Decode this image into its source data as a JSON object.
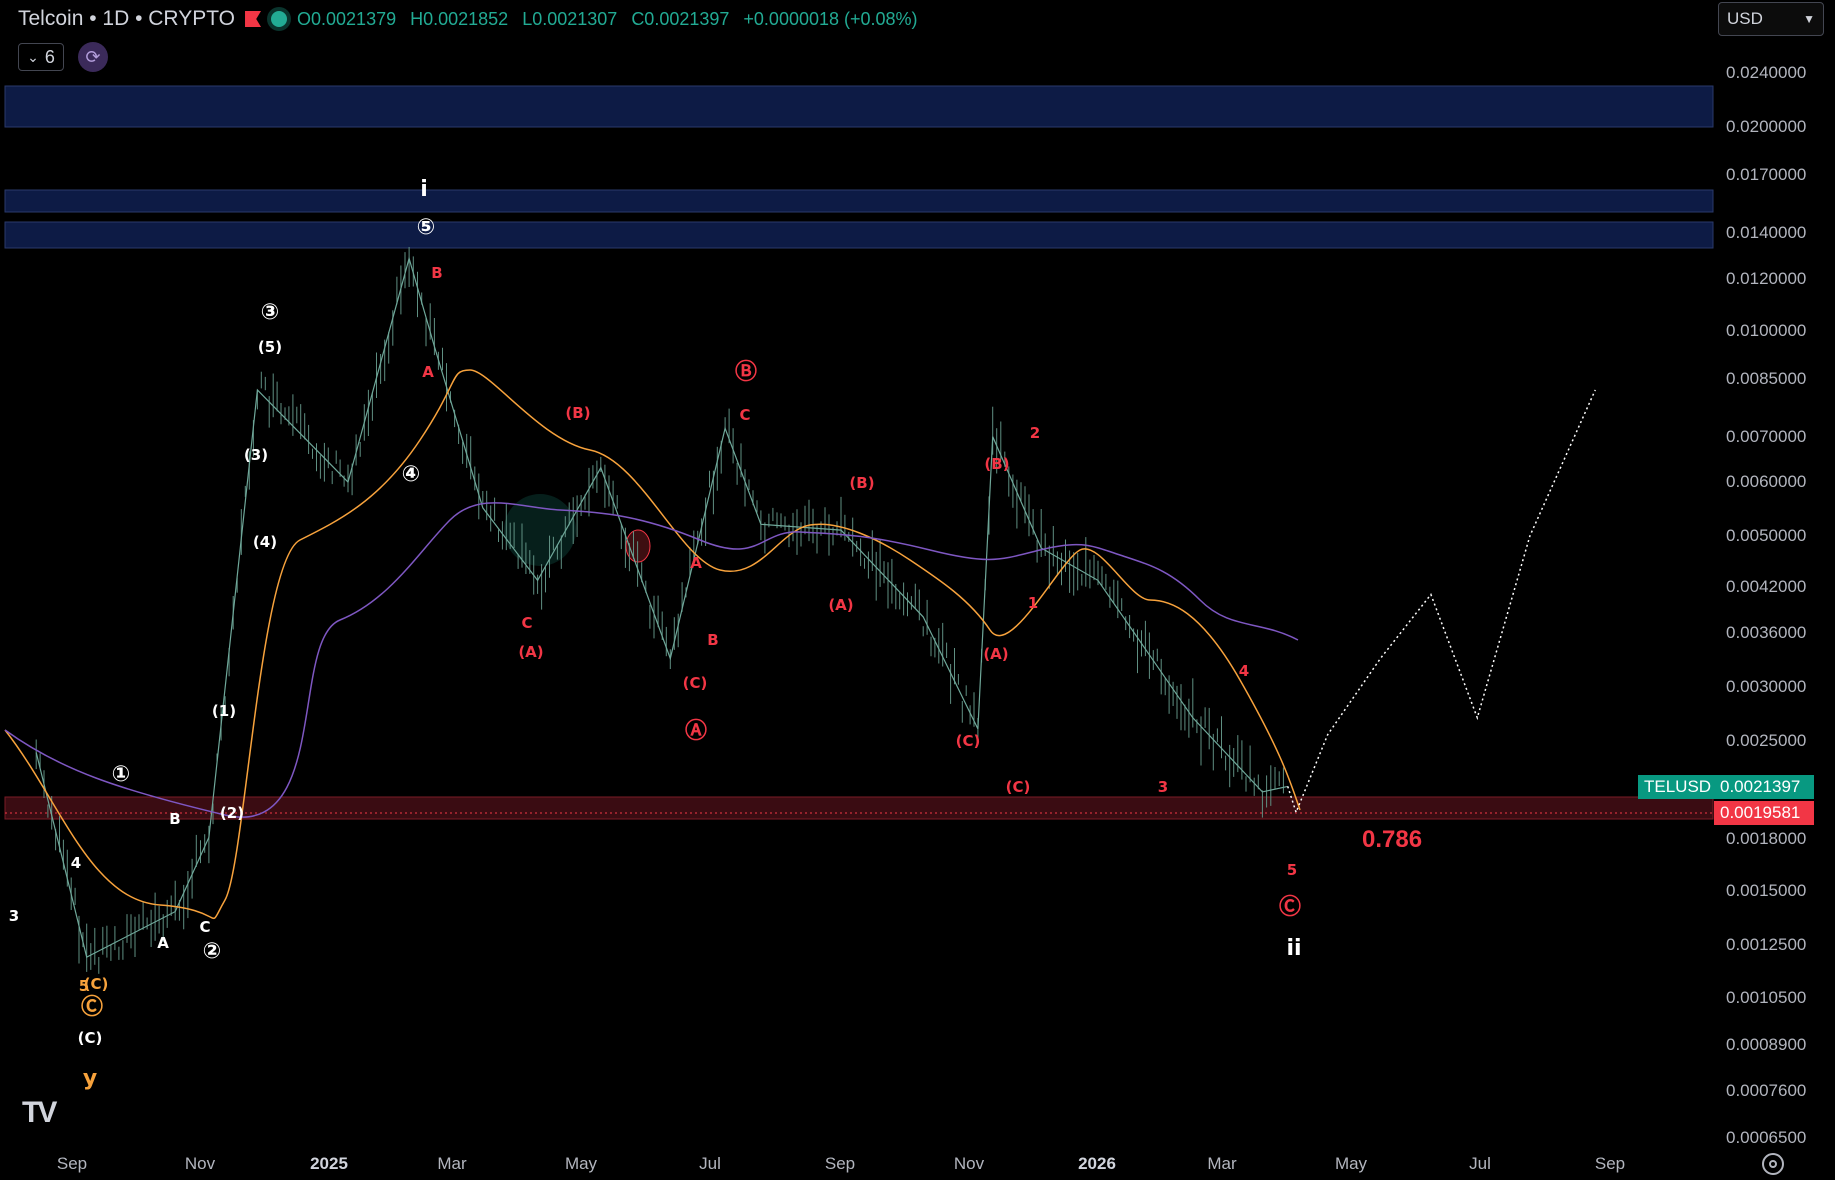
{
  "header": {
    "title": "Telcoin • 1D • CRYPTO",
    "open": "O0.0021379",
    "high": "H0.0021852",
    "low": "L0.0021307",
    "close": "C0.0021397",
    "change": "+0.0000018 (+0.08%)",
    "indicators_count": "6",
    "currency": "USD"
  },
  "price_axis": [
    "0.0240000",
    "0.0200000",
    "0.0170000",
    "0.0140000",
    "0.0120000",
    "0.0100000",
    "0.0085000",
    "0.0070000",
    "0.0060000",
    "0.0050000",
    "0.0042000",
    "0.0036000",
    "0.0030000",
    "0.0025000",
    "0.0018000",
    "0.0015000",
    "0.0012500",
    "0.0010500",
    "0.0008900",
    "0.0007600",
    "0.0006500"
  ],
  "time_axis": [
    "Sep",
    "Nov",
    "2025",
    "Mar",
    "May",
    "Jul",
    "Sep",
    "Nov",
    "2026",
    "Mar",
    "May",
    "Jul",
    "Sep"
  ],
  "tags": {
    "symbol": "TELUSD",
    "last_price": "0.0021397",
    "level_price": "0.0019581",
    "symbol_color": "#089981",
    "level_color": "#f23645"
  },
  "fib_label": "0.786",
  "logo": "TV",
  "icons": {
    "settings": "gear-icon",
    "sync": "sync-icon",
    "chevron": "chevron-down-icon"
  },
  "chart_data": {
    "type": "line",
    "symbol": "TELUSD",
    "timeframe": "1D",
    "log_scale": true,
    "x": [
      "2024-08-15",
      "2024-09-08",
      "2024-10-20",
      "2024-11-05",
      "2024-11-28",
      "2025-01-10",
      "2025-02-08",
      "2025-02-20",
      "2025-03-15",
      "2025-04-10",
      "2025-05-10",
      "2025-06-12",
      "2025-07-08",
      "2025-07-25",
      "2025-09-01",
      "2025-10-10",
      "2025-11-05",
      "2025-11-12",
      "2025-12-05",
      "2026-01-01",
      "2026-02-15",
      "2026-03-20",
      "2026-04-01"
    ],
    "series": [
      {
        "values": [
          0.0024,
          0.0012,
          0.0014,
          0.0018,
          0.0082,
          0.006,
          0.0128,
          0.0095,
          0.0055,
          0.0043,
          0.0063,
          0.0033,
          0.0072,
          0.0052,
          0.0051,
          0.0038,
          0.0026,
          0.007,
          0.0048,
          0.0043,
          0.0027,
          0.0021,
          0.0021397
        ]
      }
    ],
    "projection": {
      "x": [
        "2026-04-01",
        "2026-04-05",
        "2026-04-20",
        "2026-05-15",
        "2026-06-08",
        "2026-06-30",
        "2026-07-25",
        "2026-08-25"
      ],
      "y": [
        0.0021397,
        0.00196,
        0.00255,
        0.0033,
        0.0041,
        0.0027,
        0.005,
        0.0082
      ]
    },
    "wave_labels": [
      {
        "text": "i",
        "color": "white"
      },
      {
        "text": "⑤",
        "color": "white"
      },
      {
        "text": "③",
        "color": "white"
      },
      {
        "text": "(5)",
        "color": "white"
      },
      {
        "text": "(3)",
        "color": "white"
      },
      {
        "text": "(4)",
        "color": "white"
      },
      {
        "text": "④",
        "color": "white"
      },
      {
        "text": "①",
        "color": "white"
      },
      {
        "text": "(1)",
        "color": "white"
      },
      {
        "text": "(2)",
        "color": "white"
      },
      {
        "text": "②",
        "color": "white"
      },
      {
        "text": "B",
        "color": "white"
      },
      {
        "text": "A",
        "color": "white"
      },
      {
        "text": "C",
        "color": "white"
      },
      {
        "text": "4",
        "color": "white"
      },
      {
        "text": "3",
        "color": "white"
      },
      {
        "text": "(C)",
        "color": "white"
      },
      {
        "text": "5",
        "color": "orange"
      },
      {
        "text": "(C)",
        "color": "orange"
      },
      {
        "text": "Ⓒ",
        "color": "orange"
      },
      {
        "text": "y",
        "color": "orange"
      },
      {
        "text": "B",
        "color": "red"
      },
      {
        "text": "A",
        "color": "red"
      },
      {
        "text": "C",
        "color": "red"
      },
      {
        "text": "(A)",
        "color": "red"
      },
      {
        "text": "(B)",
        "color": "red"
      },
      {
        "text": "Ⓑ",
        "color": "red"
      },
      {
        "text": "C",
        "color": "red"
      },
      {
        "text": "A",
        "color": "red"
      },
      {
        "text": "B",
        "color": "red"
      },
      {
        "text": "(C)",
        "color": "red"
      },
      {
        "text": "Ⓐ",
        "color": "red"
      },
      {
        "text": "(B)",
        "color": "red"
      },
      {
        "text": "(A)",
        "color": "red"
      },
      {
        "text": "(C)",
        "color": "red"
      },
      {
        "text": "(B)",
        "color": "red"
      },
      {
        "text": "(A)",
        "color": "red"
      },
      {
        "text": "(C)",
        "color": "red"
      },
      {
        "text": "2",
        "color": "red"
      },
      {
        "text": "1",
        "color": "red"
      },
      {
        "text": "4",
        "color": "red"
      },
      {
        "text": "3",
        "color": "red"
      },
      {
        "text": "5",
        "color": "red"
      },
      {
        "text": "Ⓒ",
        "color": "red"
      },
      {
        "text": "ii",
        "color": "white"
      }
    ]
  }
}
